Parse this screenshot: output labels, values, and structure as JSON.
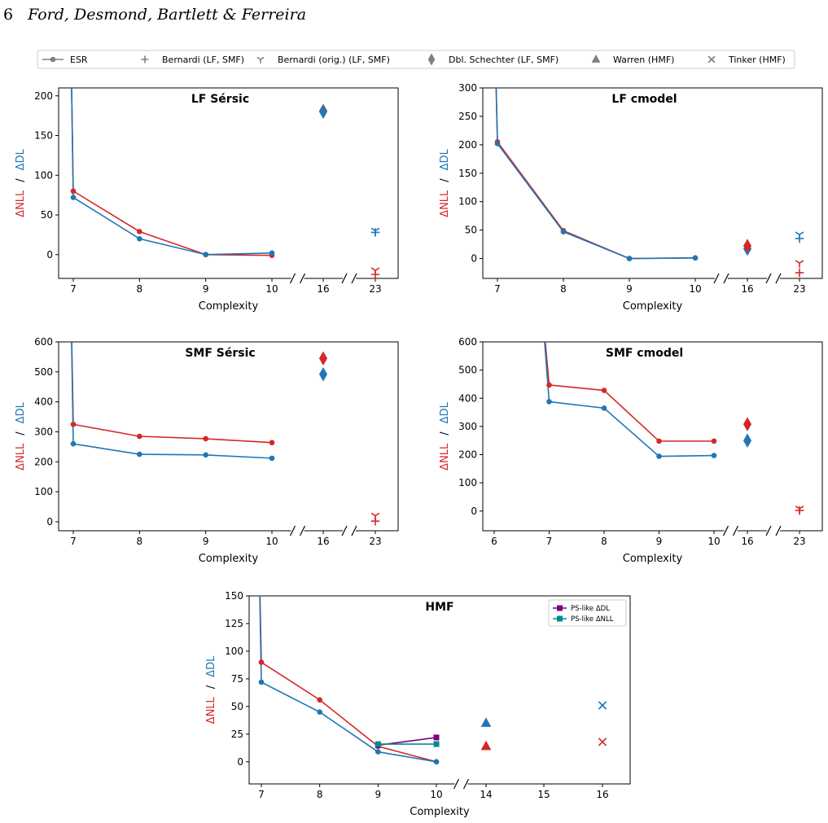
{
  "header": {
    "page_number": "6",
    "running_title": "Ford, Desmond, Bartlett & Ferreira"
  },
  "legend": {
    "entries": [
      {
        "label": "ESR",
        "marker": "line-dot"
      },
      {
        "label": "Bernardi (LF, SMF)",
        "marker": "plus"
      },
      {
        "label": "Bernardi (orig.) (LF, SMF)",
        "marker": "tri-down"
      },
      {
        "label": "Dbl. Schechter (LF, SMF)",
        "marker": "diamond"
      },
      {
        "label": "Warren (HMF)",
        "marker": "triangle"
      },
      {
        "label": "Tinker (HMF)",
        "marker": "x"
      }
    ]
  },
  "colors": {
    "nll": "#d62728",
    "dl": "#1f77b4",
    "gray": "#808080",
    "ps_dl": "#800080",
    "ps_nll": "#008b8b"
  },
  "y_label_parts": {
    "nll": "ΔNLL",
    "sep": "/",
    "dl": "ΔDL"
  },
  "chart_data": [
    {
      "type": "line",
      "title": "LF Sérsic",
      "xlabel": "Complexity",
      "ylim": [
        -30,
        210
      ],
      "yticks": [
        0,
        50,
        100,
        150,
        200
      ],
      "x_ticks": [
        "7",
        "8",
        "9",
        "10",
        "16",
        "23"
      ],
      "axis_break": true,
      "series": [
        {
          "metric": "nll",
          "x": [
            7,
            8,
            9,
            10
          ],
          "values": [
            80,
            29,
            0,
            -1
          ]
        },
        {
          "metric": "dl",
          "x": [
            7,
            8,
            9,
            10
          ],
          "values": [
            72,
            20,
            0,
            2
          ]
        }
      ],
      "markers": [
        {
          "x": "16",
          "metric": "nll",
          "shape": "diamond",
          "y": 181
        },
        {
          "x": "16",
          "metric": "dl",
          "shape": "diamond",
          "y": 180
        },
        {
          "x": "23",
          "metric": "dl",
          "shape": "plus",
          "y": 28
        },
        {
          "x": "23",
          "metric": "dl",
          "shape": "tri-down",
          "y": 30
        },
        {
          "x": "23",
          "metric": "nll",
          "shape": "plus",
          "y": -25
        },
        {
          "x": "23",
          "metric": "nll",
          "shape": "tri-down",
          "y": -20
        }
      ]
    },
    {
      "type": "line",
      "title": "LF cmodel",
      "xlabel": "Complexity",
      "ylim": [
        -35,
        300
      ],
      "yticks": [
        0,
        50,
        100,
        150,
        200,
        250,
        300
      ],
      "x_ticks": [
        "7",
        "8",
        "9",
        "10",
        "16",
        "23"
      ],
      "axis_break": true,
      "series": [
        {
          "metric": "nll",
          "x": [
            7,
            8,
            9,
            10
          ],
          "values": [
            205,
            49,
            0,
            1
          ]
        },
        {
          "metric": "dl",
          "x": [
            7,
            8,
            9,
            10
          ],
          "values": [
            202,
            47,
            0,
            1
          ]
        }
      ],
      "markers": [
        {
          "x": "16",
          "metric": "dl",
          "shape": "diamond",
          "y": 17
        },
        {
          "x": "16",
          "metric": "nll",
          "shape": "diamond",
          "y": 22
        },
        {
          "x": "23",
          "metric": "dl",
          "shape": "plus",
          "y": 35
        },
        {
          "x": "23",
          "metric": "dl",
          "shape": "tri-down",
          "y": 42
        },
        {
          "x": "23",
          "metric": "nll",
          "shape": "plus",
          "y": -25
        },
        {
          "x": "23",
          "metric": "nll",
          "shape": "tri-down",
          "y": -8
        }
      ]
    },
    {
      "type": "line",
      "title": "SMF Sérsic",
      "xlabel": "Complexity",
      "ylim": [
        -30,
        600
      ],
      "yticks": [
        0,
        100,
        200,
        300,
        400,
        500,
        600
      ],
      "x_ticks": [
        "7",
        "8",
        "9",
        "10",
        "16",
        "23"
      ],
      "axis_break": true,
      "series": [
        {
          "metric": "nll",
          "x": [
            7,
            8,
            9,
            10
          ],
          "values": [
            325,
            285,
            277,
            264
          ]
        },
        {
          "metric": "dl",
          "x": [
            7,
            8,
            9,
            10
          ],
          "values": [
            260,
            225,
            223,
            212
          ]
        }
      ],
      "markers": [
        {
          "x": "16",
          "metric": "nll",
          "shape": "diamond",
          "y": 545
        },
        {
          "x": "16",
          "metric": "dl",
          "shape": "diamond",
          "y": 492
        },
        {
          "x": "23",
          "metric": "nll",
          "shape": "plus",
          "y": 2
        },
        {
          "x": "23",
          "metric": "nll",
          "shape": "tri-down",
          "y": 20
        }
      ]
    },
    {
      "type": "line",
      "title": "SMF cmodel",
      "xlabel": "Complexity",
      "ylim": [
        -70,
        600
      ],
      "yticks": [
        0,
        100,
        200,
        300,
        400,
        500,
        600
      ],
      "x_ticks": [
        "6",
        "7",
        "8",
        "9",
        "10",
        "16",
        "23"
      ],
      "axis_break": true,
      "series": [
        {
          "metric": "nll",
          "x": [
            7,
            8,
            9,
            10
          ],
          "values": [
            447,
            428,
            248,
            248
          ]
        },
        {
          "metric": "dl",
          "x": [
            7,
            8,
            9,
            10
          ],
          "values": [
            388,
            365,
            194,
            197
          ]
        }
      ],
      "markers": [
        {
          "x": "16",
          "metric": "nll",
          "shape": "diamond",
          "y": 308
        },
        {
          "x": "16",
          "metric": "dl",
          "shape": "diamond",
          "y": 250
        },
        {
          "x": "23",
          "metric": "nll",
          "shape": "plus",
          "y": 2
        },
        {
          "x": "23",
          "metric": "nll",
          "shape": "tri-down",
          "y": 8
        }
      ]
    },
    {
      "type": "line",
      "title": "HMF",
      "xlabel": "Complexity",
      "ylim": [
        -20,
        150
      ],
      "yticks": [
        0,
        25,
        50,
        75,
        100,
        125,
        150
      ],
      "x_ticks": [
        "7",
        "8",
        "9",
        "10",
        "14",
        "15",
        "16"
      ],
      "axis_break": true,
      "series": [
        {
          "metric": "nll",
          "x": [
            7,
            8,
            9,
            10
          ],
          "values": [
            90,
            56,
            14,
            0
          ]
        },
        {
          "metric": "dl",
          "x": [
            7,
            8,
            9,
            10
          ],
          "values": [
            72,
            45,
            9,
            0
          ]
        },
        {
          "metric": "ps_dl",
          "name": "PS-like ΔDL",
          "x": [
            9,
            10
          ],
          "values": [
            15,
            22
          ]
        },
        {
          "metric": "ps_nll",
          "name": "PS-like ΔNLL",
          "x": [
            9,
            10
          ],
          "values": [
            16,
            16
          ]
        }
      ],
      "markers": [
        {
          "x": "14",
          "metric": "dl",
          "shape": "triangle",
          "y": 35
        },
        {
          "x": "14",
          "metric": "nll",
          "shape": "triangle",
          "y": 14
        },
        {
          "x": "16",
          "metric": "dl",
          "shape": "x",
          "y": 51
        },
        {
          "x": "16",
          "metric": "nll",
          "shape": "x",
          "y": 18
        }
      ],
      "legend": {
        "position": "top-right",
        "entries": [
          "PS-like ΔDL",
          "PS-like ΔNLL"
        ]
      }
    }
  ]
}
